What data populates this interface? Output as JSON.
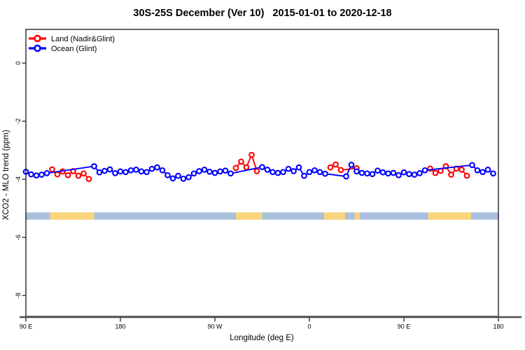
{
  "chart_data": {
    "type": "line",
    "title": "30S-25S December (Ver 10)   2015-01-01 to 2020-12-18",
    "xlabel": "Longitude (deg E)",
    "ylabel": "XCO2 - MLO trend (ppm)",
    "xlim": [
      0,
      450
    ],
    "ylim": [
      -8.72,
      1.16
    ],
    "grid": "off",
    "legend_position": "top-left",
    "x_ticks": [
      {
        "pos": 0,
        "label": "90 E"
      },
      {
        "pos": 90,
        "label": "180"
      },
      {
        "pos": 180,
        "label": "90 W"
      },
      {
        "pos": 270,
        "label": "0"
      },
      {
        "pos": 360,
        "label": "90 E"
      },
      {
        "pos": 450,
        "label": "180"
      }
    ],
    "x_axis_note": "axis degrees east of 90E, wrapping 90E->180->90W->0->90E->180",
    "y_ticks": [
      {
        "pos": 0,
        "label": "0"
      },
      {
        "pos": -2,
        "label": "-2"
      },
      {
        "pos": -4,
        "label": "-4"
      },
      {
        "pos": -6,
        "label": "-6"
      },
      {
        "pos": -8,
        "label": "-8"
      }
    ],
    "legend": [
      {
        "label": "Land (Nadir&Glint)",
        "color": "#FF0000"
      },
      {
        "label": "Ocean (Glint)",
        "color": "#0000FF"
      }
    ],
    "series": [
      {
        "name": "Land (Nadir&Glint)",
        "color": "#FF0000",
        "gap": 30,
        "points": [
          [
            25,
            -3.66
          ],
          [
            30,
            -3.83
          ],
          [
            35,
            -3.73
          ],
          [
            40,
            -3.86
          ],
          [
            45,
            -3.72
          ],
          [
            50,
            -3.88
          ],
          [
            55,
            -3.8
          ],
          [
            60,
            -3.99
          ],
          [
            200,
            -3.61
          ],
          [
            205,
            -3.39
          ],
          [
            210,
            -3.59
          ],
          [
            215,
            -3.16
          ],
          [
            220,
            -3.72
          ],
          [
            290,
            -3.59
          ],
          [
            295,
            -3.49
          ],
          [
            300,
            -3.68
          ],
          [
            315,
            -3.62
          ],
          [
            385,
            -3.63
          ],
          [
            390,
            -3.78
          ],
          [
            395,
            -3.71
          ],
          [
            400,
            -3.55
          ],
          [
            405,
            -3.84
          ],
          [
            410,
            -3.63
          ],
          [
            415,
            -3.67
          ],
          [
            420,
            -3.88
          ]
        ]
      },
      {
        "name": "Ocean (Glint)",
        "color": "#0000FF",
        "gap": 500,
        "points": [
          [
            0,
            -3.74
          ],
          [
            5,
            -3.83
          ],
          [
            10,
            -3.87
          ],
          [
            15,
            -3.84
          ],
          [
            20,
            -3.79
          ],
          [
            65,
            -3.55
          ],
          [
            70,
            -3.76
          ],
          [
            75,
            -3.71
          ],
          [
            80,
            -3.66
          ],
          [
            85,
            -3.79
          ],
          [
            90,
            -3.73
          ],
          [
            95,
            -3.75
          ],
          [
            100,
            -3.69
          ],
          [
            105,
            -3.67
          ],
          [
            110,
            -3.73
          ],
          [
            115,
            -3.75
          ],
          [
            120,
            -3.64
          ],
          [
            125,
            -3.59
          ],
          [
            130,
            -3.69
          ],
          [
            135,
            -3.86
          ],
          [
            140,
            -3.97
          ],
          [
            145,
            -3.88
          ],
          [
            150,
            -3.98
          ],
          [
            155,
            -3.93
          ],
          [
            160,
            -3.8
          ],
          [
            165,
            -3.72
          ],
          [
            170,
            -3.67
          ],
          [
            175,
            -3.74
          ],
          [
            180,
            -3.78
          ],
          [
            185,
            -3.73
          ],
          [
            190,
            -3.7
          ],
          [
            195,
            -3.8
          ],
          [
            225,
            -3.58
          ],
          [
            230,
            -3.67
          ],
          [
            235,
            -3.75
          ],
          [
            240,
            -3.78
          ],
          [
            245,
            -3.75
          ],
          [
            250,
            -3.64
          ],
          [
            255,
            -3.72
          ],
          [
            260,
            -3.59
          ],
          [
            265,
            -3.88
          ],
          [
            270,
            -3.75
          ],
          [
            275,
            -3.69
          ],
          [
            280,
            -3.75
          ],
          [
            285,
            -3.81
          ],
          [
            305,
            -3.9
          ],
          [
            310,
            -3.5
          ],
          [
            315,
            -3.73
          ],
          [
            320,
            -3.78
          ],
          [
            325,
            -3.8
          ],
          [
            330,
            -3.82
          ],
          [
            335,
            -3.7
          ],
          [
            340,
            -3.76
          ],
          [
            345,
            -3.8
          ],
          [
            350,
            -3.78
          ],
          [
            355,
            -3.86
          ],
          [
            360,
            -3.76
          ],
          [
            365,
            -3.82
          ],
          [
            370,
            -3.84
          ],
          [
            375,
            -3.79
          ],
          [
            380,
            -3.69
          ],
          [
            425,
            -3.51
          ],
          [
            430,
            -3.69
          ],
          [
            435,
            -3.75
          ],
          [
            440,
            -3.67
          ],
          [
            445,
            -3.8
          ]
        ]
      }
    ],
    "band": {
      "description": "land/ocean indicator strip",
      "y_range": [
        -5.14,
        -5.39
      ],
      "ocean_color": "#A9C0DF",
      "land_color": "#FBD57D",
      "land_segments": [
        [
          23,
          65
        ],
        [
          200,
          225
        ],
        [
          284,
          304
        ],
        [
          313,
          318
        ],
        [
          383,
          424
        ]
      ]
    }
  }
}
